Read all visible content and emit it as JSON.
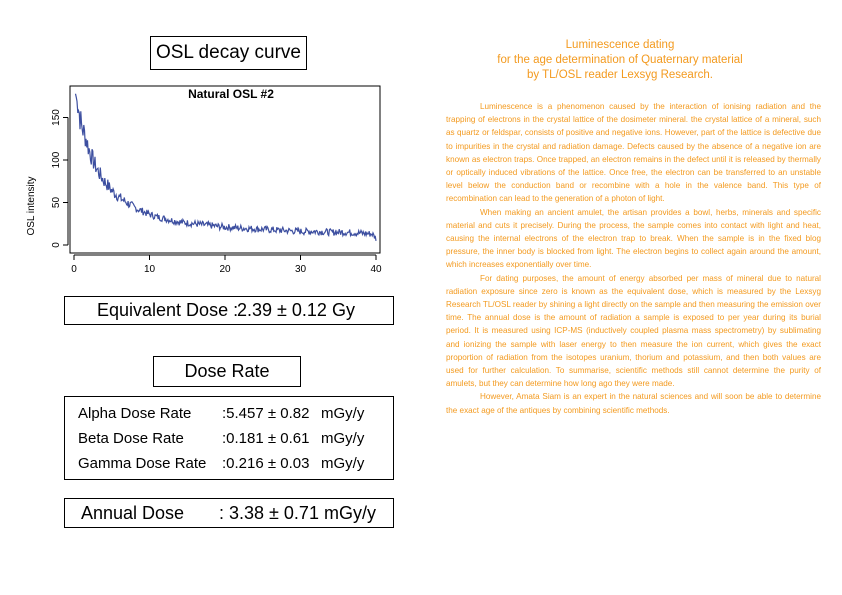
{
  "osl_panel": {
    "title": "OSL decay curve"
  },
  "chart_data": {
    "type": "line",
    "title": "Natural OSL #2",
    "xlabel": "",
    "ylabel": "OSL intensity",
    "xlim": [
      0,
      40
    ],
    "ylim": [
      0,
      180
    ],
    "x_ticks": [
      "0",
      "10",
      "20",
      "30",
      "40"
    ],
    "y_ticks": [
      "0",
      "50",
      "100",
      "150"
    ],
    "grid": false,
    "color": "#3d4fa0",
    "x": [
      0.2,
      0.6,
      1,
      1.5,
      2,
      2.5,
      3,
      3.5,
      4,
      4.5,
      5,
      5.5,
      6,
      7,
      8,
      9,
      10,
      11,
      12,
      13,
      14,
      15,
      16,
      17,
      18,
      19,
      20,
      22,
      24,
      26,
      28,
      30,
      32,
      34,
      36,
      38,
      39.5,
      40
    ],
    "values": [
      178,
      160,
      140,
      128,
      112,
      100,
      90,
      82,
      75,
      70,
      64,
      60,
      56,
      50,
      44,
      40,
      36,
      33,
      31,
      29,
      27,
      26,
      25,
      24,
      23,
      22,
      21,
      20,
      19,
      18,
      17,
      16,
      16,
      15,
      15,
      14,
      13,
      8
    ]
  },
  "equivalent_dose": {
    "label": "Equivalent Dose :",
    "value": "2.39 ± 0.12 Gy"
  },
  "dose_rate": {
    "title": "Dose Rate",
    "rows": [
      {
        "name": "Alpha Dose Rate",
        "value": ":5.457 ± 0.82",
        "unit": "mGy/y"
      },
      {
        "name": "Beta Dose Rate",
        "value": ":0.181 ± 0.61",
        "unit": "mGy/y"
      },
      {
        "name": "Gamma Dose Rate",
        "value": ":0.216 ± 0.03",
        "unit": "mGy/y"
      }
    ]
  },
  "annual_dose": {
    "label": "Annual Dose",
    "value": ": 3.38 ± 0.71 mGy/y"
  },
  "document": {
    "title_lines": [
      "Luminescence dating",
      "for the age determination of Quaternary material",
      "by TL/OSL reader Lexsyg Research."
    ],
    "paragraphs": [
      "Luminescence is a phenomenon caused by the interaction of ionising radiation and the trapping of electrons in the crystal lattice of the dosimeter mineral. the crystal lattice of a mineral, such as quartz or feldspar, consists of positive and negative ions. However, part of the lattice is defective due to impurities in the crystal and radiation damage. Defects caused by the absence of a negative ion are known as electron traps. Once trapped, an electron remains in the defect until it is released by thermally or optically induced vibrations of the lattice. Once free, the electron can be transferred to an unstable level below the conduction band or recombine with a hole in the valence band. This type of recombination can lead to the generation of a photon of light.",
      "When making an ancient amulet, the artisan provides a bowl, herbs, minerals and specific material and cuts it precisely. During the process, the sample comes into contact with light and heat, causing the internal electrons of the electron trap to break. When the sample is in the fixed blog pressure, the inner body is blocked from light. The electron begins to collect again around the amount, which increases exponentially over time.",
      "For dating purposes, the amount of energy absorbed per mass of mineral due to natural radiation exposure since zero is known as the equivalent dose, which is measured by the Lexsyg Research TL/OSL reader by shining a light directly on the sample and then measuring the emission over time. The annual dose is the amount of radiation a sample is exposed to per year during its burial period. It is measured using ICP-MS (inductively coupled plasma mass spectrometry) by sublimating and ionizing the sample with laser energy to then measure the ion current, which gives the exact proportion of radiation from the isotopes uranium, thorium and potassium, and then both values are used for further calculation. To summarise, scientific methods still cannot determine the purity of amulets, but they can determine how long ago they were made.",
      "However, Amata Siam is an expert in the natural sciences and will soon be able to determine the exact age of the antiques by combining scientific methods."
    ]
  }
}
